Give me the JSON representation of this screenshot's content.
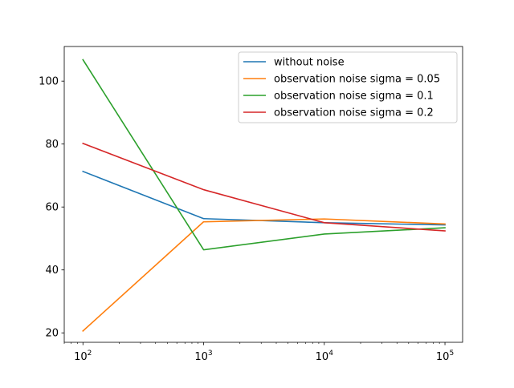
{
  "chart_data": {
    "type": "line",
    "title": "",
    "xlabel": "",
    "ylabel": "",
    "xscale": "log",
    "xlim": [
      70,
      140000
    ],
    "ylim": [
      17,
      111
    ],
    "grid": false,
    "legend_position": "top-right",
    "x": [
      100,
      1000,
      10000,
      100000
    ],
    "xticks": [
      {
        "value": 100,
        "base": "10",
        "exp": "2"
      },
      {
        "value": 1000,
        "base": "10",
        "exp": "3"
      },
      {
        "value": 10000,
        "base": "10",
        "exp": "4"
      },
      {
        "value": 100000,
        "base": "10",
        "exp": "5"
      }
    ],
    "yticks": [
      {
        "value": 20,
        "label": "20"
      },
      {
        "value": 40,
        "label": "40"
      },
      {
        "value": 60,
        "label": "60"
      },
      {
        "value": 80,
        "label": "80"
      },
      {
        "value": 100,
        "label": "100"
      }
    ],
    "series": [
      {
        "name": "without noise",
        "color": "#1f77b4",
        "values": [
          71.3,
          56.3,
          55.0,
          54.3
        ]
      },
      {
        "name": "observation noise sigma = 0.05",
        "color": "#ff7f0e",
        "values": [
          20.6,
          55.3,
          56.2,
          54.6
        ]
      },
      {
        "name": "observation noise sigma = 0.1",
        "color": "#2ca02c",
        "values": [
          106.8,
          46.4,
          51.4,
          53.4
        ]
      },
      {
        "name": "observation noise sigma = 0.2",
        "color": "#d62728",
        "values": [
          80.2,
          65.5,
          55.0,
          52.4
        ]
      }
    ]
  }
}
